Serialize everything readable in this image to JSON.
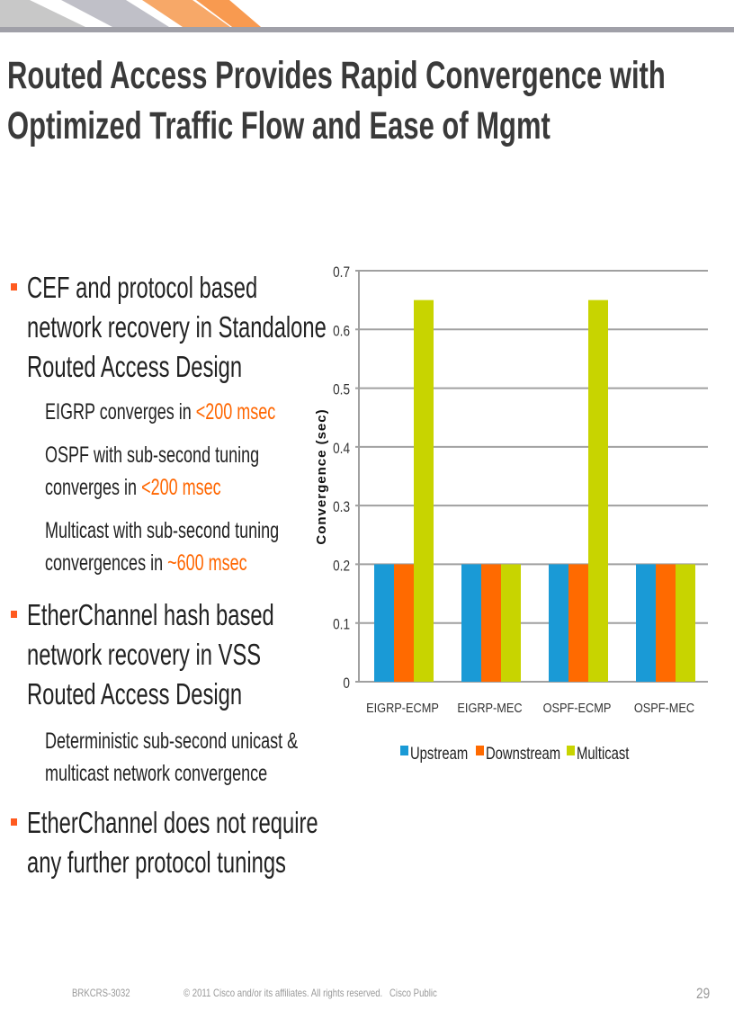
{
  "title_lines": [
    "Routed Access Provides Rapid Convergence with",
    "Optimized Traffic Flow and Ease of Mgmt"
  ],
  "bullets": [
    {
      "lines": [
        "CEF and protocol based",
        "network recovery in Standalone",
        "Routed Access Design"
      ],
      "subs": [
        {
          "lines": [
            "EIGRP converges in "
          ],
          "highlight": "<200 msec"
        },
        {
          "lines": [
            "OSPF with sub-second tuning",
            "converges in "
          ],
          "highlight": "<200 msec"
        },
        {
          "lines": [
            "Multicast with sub-second tuning",
            "convergences in "
          ],
          "highlight": "~600 msec"
        }
      ]
    },
    {
      "lines": [
        "EtherChannel hash based",
        "network recovery in VSS",
        "Routed Access Design"
      ],
      "subs": [
        {
          "lines": [
            "Deterministic sub-second unicast &",
            "multicast network convergence"
          ],
          "highlight": ""
        }
      ]
    },
    {
      "lines": [
        "EtherChannel does not require",
        "any further protocol tunings"
      ],
      "subs": []
    }
  ],
  "footer": {
    "code": "BRKCRS-3032",
    "copyright": "© 2011 Cisco and/or its affiliates. All rights reserved.",
    "classification": "Cisco Public",
    "page": "29"
  },
  "colors": {
    "accent": "#ff6600",
    "upstream": "#1a9ad6",
    "downstream": "#ff6a00",
    "multicast": "#c8d400"
  },
  "chart_data": {
    "type": "bar",
    "categories": [
      "EIGRP-ECMP",
      "EIGRP-MEC",
      "OSPF-ECMP",
      "OSPF-MEC"
    ],
    "series": [
      {
        "name": "Upstream",
        "values": [
          0.2,
          0.2,
          0.2,
          0.2
        ]
      },
      {
        "name": "Downstream",
        "values": [
          0.2,
          0.2,
          0.2,
          0.2
        ]
      },
      {
        "name": "Multicast",
        "values": [
          0.65,
          0.2,
          0.65,
          0.2
        ]
      }
    ],
    "ylabel": "Convergence (sec)",
    "ylim": [
      0,
      0.7
    ],
    "yticks": [
      "0",
      "0.1",
      "0.2",
      "0.3",
      "0.4",
      "0.5",
      "0.6",
      "0.7"
    ],
    "grid": true,
    "legend": "bottom"
  }
}
